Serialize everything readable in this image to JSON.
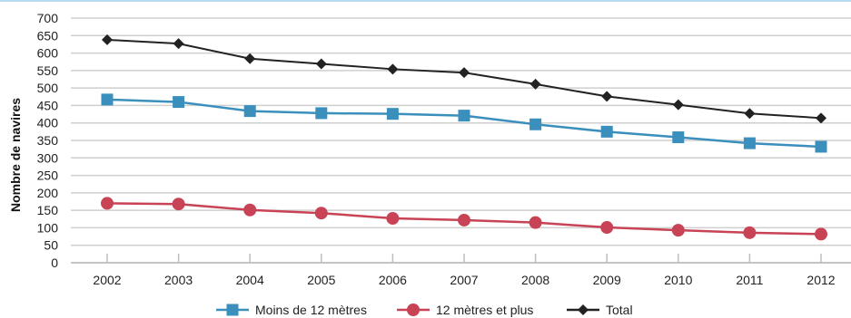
{
  "chart_data": {
    "type": "line",
    "title": "",
    "xlabel": "",
    "ylabel": "Nombre de navires",
    "ylim": [
      0,
      700
    ],
    "yticks": [
      0,
      50,
      100,
      150,
      200,
      250,
      300,
      350,
      400,
      450,
      500,
      550,
      600,
      650,
      700
    ],
    "categories": [
      "2002",
      "2003",
      "2004",
      "2005",
      "2006",
      "2007",
      "2008",
      "2009",
      "2010",
      "2011",
      "2012"
    ],
    "grid": true,
    "legend_position": "bottom",
    "series": [
      {
        "name": "Moins de 12 mètres",
        "color": "#3a8fbd",
        "marker": "square",
        "values": [
          467,
          460,
          434,
          428,
          426,
          421,
          396,
          375,
          359,
          342,
          332
        ]
      },
      {
        "name": "12 mètres et plus",
        "color": "#c84355",
        "marker": "circle",
        "values": [
          170,
          168,
          151,
          142,
          127,
          122,
          115,
          101,
          93,
          86,
          82
        ]
      },
      {
        "name": "Total",
        "color": "#222222",
        "marker": "diamond",
        "values": [
          638,
          627,
          584,
          569,
          554,
          544,
          511,
          476,
          452,
          427,
          414
        ]
      }
    ]
  }
}
